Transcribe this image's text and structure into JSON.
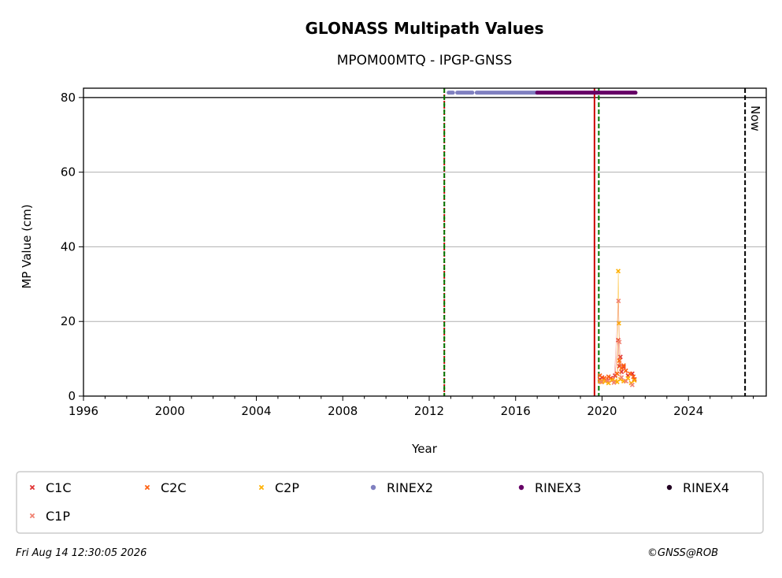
{
  "chart_data": {
    "type": "scatter",
    "title": "GLONASS Multipath Values",
    "subtitle": "MPOM00MTQ - IPGP-GNSS",
    "xlabel": "Year",
    "ylabel": "MP Value (cm)",
    "xlim": [
      1996,
      2027.6
    ],
    "ylim": [
      0,
      82.5
    ],
    "x_ticks": [
      1996,
      2000,
      2004,
      2008,
      2012,
      2016,
      2020,
      2024
    ],
    "y_ticks": [
      0,
      20,
      40,
      60,
      80
    ],
    "grid": "y",
    "threshold_line": 80,
    "vlines": [
      {
        "x": 2012.7,
        "color": "#cc0000",
        "style": "dotted"
      },
      {
        "x": 2012.7,
        "color": "#007700",
        "style": "dashed"
      },
      {
        "x": 2019.65,
        "color": "#cc0000",
        "style": "solid"
      },
      {
        "x": 2019.85,
        "color": "#007700",
        "style": "dashed"
      },
      {
        "x": 2026.62,
        "color": "#000000",
        "style": "dashed",
        "label": "Now"
      }
    ],
    "rinex_bars": [
      {
        "name": "RINEX2",
        "color": "#8080c0",
        "y": 81.3,
        "segments": [
          [
            2012.9,
            2013.1
          ],
          [
            2013.3,
            2014.0
          ],
          [
            2014.2,
            2017.0
          ]
        ]
      },
      {
        "name": "RINEX3",
        "color": "#660066",
        "y": 81.3,
        "segments": [
          [
            2017.0,
            2021.55
          ]
        ]
      }
    ],
    "series": [
      {
        "name": "C1C",
        "color": "#e03030",
        "marker": "x",
        "x": [
          2019.9,
          2020.0,
          2020.2,
          2020.4,
          2020.6,
          2020.75,
          2020.8,
          2020.85,
          2020.9,
          2021.0,
          2021.2,
          2021.4,
          2021.5
        ],
        "y": [
          4.5,
          5.0,
          4.2,
          4.8,
          5.5,
          15.0,
          8.0,
          10.5,
          6.5,
          7.8,
          5.5,
          6.0,
          4.5
        ]
      },
      {
        "name": "C2C",
        "color": "#ff6010",
        "marker": "x",
        "x": [
          2019.9,
          2020.1,
          2020.3,
          2020.5,
          2020.7,
          2020.8,
          2020.9,
          2021.0,
          2021.1,
          2021.3,
          2021.45
        ],
        "y": [
          5.5,
          4.8,
          5.2,
          4.5,
          6.0,
          9.5,
          7.5,
          8.2,
          6.8,
          6.0,
          5.2
        ]
      },
      {
        "name": "C2P",
        "color": "#ffb000",
        "marker": "x",
        "x": [
          2019.9,
          2020.0,
          2020.15,
          2020.3,
          2020.45,
          2020.6,
          2020.7,
          2020.75,
          2020.78,
          2020.85,
          2021.0,
          2021.2,
          2021.35,
          2021.5
        ],
        "y": [
          4.0,
          3.8,
          4.0,
          3.5,
          4.2,
          4.0,
          3.8,
          33.5,
          19.5,
          4.5,
          4.0,
          4.8,
          3.5,
          4.2
        ]
      },
      {
        "name": "C1P",
        "color": "#f08070",
        "marker": "x",
        "x": [
          2019.95,
          2020.25,
          2020.55,
          2020.76,
          2020.8,
          2020.9,
          2021.1,
          2021.4
        ],
        "y": [
          3.8,
          4.2,
          3.6,
          25.5,
          14.5,
          5.0,
          4.0,
          3.0
        ]
      }
    ],
    "legend": {
      "placement": "below",
      "entries": [
        {
          "name": "C1C",
          "color": "#e03030",
          "marker": "x"
        },
        {
          "name": "C2C",
          "color": "#ff6010",
          "marker": "x"
        },
        {
          "name": "C2P",
          "color": "#ffb000",
          "marker": "x"
        },
        {
          "name": "RINEX2",
          "color": "#8080c0",
          "marker": "dot"
        },
        {
          "name": "RINEX3",
          "color": "#660066",
          "marker": "dot"
        },
        {
          "name": "RINEX4",
          "color": "#220022",
          "marker": "dot"
        },
        {
          "name": "C1P",
          "color": "#f08070",
          "marker": "x"
        }
      ]
    }
  },
  "footer": {
    "timestamp": "Fri Aug 14 12:30:05 2026",
    "credit": "©GNSS@ROB"
  }
}
